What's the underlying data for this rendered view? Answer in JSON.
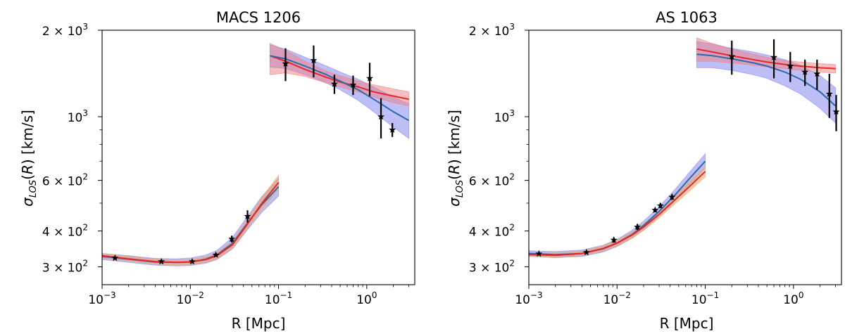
{
  "chart_data": [
    {
      "type": "line",
      "title": "MACS 1206",
      "xlabel": "R [Mpc]",
      "ylabel": "σ_LOS(R) [km/s]",
      "xscale": "log",
      "yscale": "log",
      "xlim": [
        0.001,
        3.5
      ],
      "ylim": [
        260,
        2000
      ],
      "x_ticks": [
        {
          "base": "10",
          "exp": "−3",
          "value": 0.001
        },
        {
          "base": "10",
          "exp": "−2",
          "value": 0.01
        },
        {
          "base": "10",
          "exp": "−1",
          "value": 0.1
        },
        {
          "base": "10",
          "exp": "0",
          "value": 1
        }
      ],
      "y_ticks": [
        {
          "mant": "3 × 10",
          "exp": "2",
          "value": 300
        },
        {
          "mant": "4 × 10",
          "exp": "2",
          "value": 400
        },
        {
          "mant": "6 × 10",
          "exp": "2",
          "value": 600
        },
        {
          "mant": "",
          "base": "10",
          "exp": "3",
          "value": 1000
        },
        {
          "mant": "2 × 10",
          "exp": "3",
          "value": 2000
        }
      ],
      "grid": false,
      "colors": {
        "red": "#e8232a",
        "blue": "#2a6aa8",
        "red_band": "#f08080",
        "orange_band": "#f4a460",
        "blue_band": "#8a8af0"
      },
      "series": [
        {
          "role": "inner-data",
          "x": [
            0.0014,
            0.0047,
            0.0105,
            0.0195,
            0.0295,
            0.0445
          ],
          "y": [
            322,
            313,
            313,
            330,
            375,
            450
          ],
          "yerr": [
            3,
            3,
            3,
            4,
            10,
            22
          ]
        },
        {
          "role": "outer-data",
          "x": [
            0.12,
            0.25,
            0.43,
            0.7,
            1.08,
            1.45,
            1.95
          ],
          "y": [
            1530,
            1570,
            1300,
            1290,
            1360,
            1000,
            900
          ],
          "yerr": [
            200,
            200,
            100,
            100,
            180,
            160,
            50
          ]
        },
        {
          "role": "inner-model-red",
          "x": [
            0.001,
            0.002,
            0.004,
            0.007,
            0.01,
            0.015,
            0.02,
            0.03,
            0.045,
            0.065,
            0.1
          ],
          "y": [
            328,
            320,
            313,
            311,
            312,
            318,
            328,
            358,
            425,
            500,
            590
          ],
          "band": [
            [
              322,
              334
            ],
            [
              314,
              326
            ],
            [
              307,
              319
            ],
            [
              305,
              317
            ],
            [
              306,
              318
            ],
            [
              311,
              325
            ],
            [
              320,
              336
            ],
            [
              348,
              368
            ],
            [
              410,
              442
            ],
            [
              478,
              522
            ],
            [
              558,
              625
            ]
          ]
        },
        {
          "role": "inner-model-blue",
          "x": [
            0.001,
            0.002,
            0.004,
            0.007,
            0.01,
            0.015,
            0.02,
            0.03,
            0.045,
            0.065,
            0.1
          ],
          "y": [
            326,
            319,
            312,
            311,
            312,
            319,
            330,
            362,
            428,
            495,
            570
          ],
          "band": [
            [
              318,
              334
            ],
            [
              311,
              328
            ],
            [
              304,
              321
            ],
            [
              302,
              320
            ],
            [
              303,
              322
            ],
            [
              309,
              330
            ],
            [
              318,
              342
            ],
            [
              346,
              380
            ],
            [
              406,
              452
            ],
            [
              465,
              528
            ],
            [
              530,
              612
            ]
          ]
        },
        {
          "role": "outer-model-red",
          "x": [
            0.08,
            0.12,
            0.2,
            0.35,
            0.5,
            0.8,
            1.2,
            2.0,
            3.0
          ],
          "y": [
            1630,
            1560,
            1460,
            1370,
            1320,
            1270,
            1220,
            1180,
            1150
          ],
          "band": [
            [
              1400,
              1800
            ],
            [
              1420,
              1700
            ],
            [
              1380,
              1560
            ],
            [
              1310,
              1440
            ],
            [
              1270,
              1390
            ],
            [
              1220,
              1330
            ],
            [
              1170,
              1290
            ],
            [
              1120,
              1250
            ],
            [
              1090,
              1220
            ]
          ]
        },
        {
          "role": "outer-model-blue",
          "x": [
            0.08,
            0.12,
            0.2,
            0.35,
            0.5,
            0.8,
            1.2,
            2.0,
            3.0
          ],
          "y": [
            1630,
            1590,
            1500,
            1400,
            1330,
            1240,
            1150,
            1040,
            970
          ],
          "band": [
            [
              1490,
              1780
            ],
            [
              1470,
              1720
            ],
            [
              1400,
              1610
            ],
            [
              1310,
              1500
            ],
            [
              1240,
              1430
            ],
            [
              1140,
              1350
            ],
            [
              1040,
              1270
            ],
            [
              920,
              1170
            ],
            [
              840,
              1110
            ]
          ]
        }
      ]
    },
    {
      "type": "line",
      "title": "AS 1063",
      "xlabel": "R [Mpc]",
      "ylabel": "σ_LOS(R) [km/s]",
      "xscale": "log",
      "yscale": "log",
      "xlim": [
        0.001,
        3.5
      ],
      "ylim": [
        260,
        2000
      ],
      "x_ticks": [
        {
          "base": "10",
          "exp": "−3",
          "value": 0.001
        },
        {
          "base": "10",
          "exp": "−2",
          "value": 0.01
        },
        {
          "base": "10",
          "exp": "−1",
          "value": 0.1
        },
        {
          "base": "10",
          "exp": "0",
          "value": 1
        }
      ],
      "y_ticks": [
        {
          "mant": "3 × 10",
          "exp": "2",
          "value": 300
        },
        {
          "mant": "4 × 10",
          "exp": "2",
          "value": 400
        },
        {
          "mant": "6 × 10",
          "exp": "2",
          "value": 600
        },
        {
          "mant": "",
          "base": "10",
          "exp": "3",
          "value": 1000
        },
        {
          "mant": "2 × 10",
          "exp": "3",
          "value": 2000
        }
      ],
      "grid": false,
      "colors": {
        "red": "#e8232a",
        "blue": "#2a6aa8",
        "red_band": "#f08080",
        "orange_band": "#f4a460",
        "blue_band": "#8a8af0"
      },
      "series": [
        {
          "role": "inner-data",
          "x": [
            0.0013,
            0.0045,
            0.0092,
            0.017,
            0.027,
            0.031,
            0.042
          ],
          "y": [
            333,
            337,
            372,
            413,
            473,
            490,
            525
          ],
          "yerr": [
            3,
            3,
            8,
            10,
            8,
            10,
            12
          ]
        },
        {
          "role": "outer-data",
          "x": [
            0.2,
            0.6,
            0.92,
            1.35,
            1.85,
            2.55,
            3.05
          ],
          "y": [
            1620,
            1610,
            1500,
            1430,
            1410,
            1200,
            1040
          ],
          "yerr": [
            220,
            250,
            180,
            150,
            170,
            210,
            150
          ]
        },
        {
          "role": "inner-model-red",
          "x": [
            0.001,
            0.002,
            0.004,
            0.007,
            0.01,
            0.015,
            0.02,
            0.03,
            0.045,
            0.065,
            0.1
          ],
          "y": [
            331,
            329,
            334,
            348,
            363,
            388,
            413,
            457,
            512,
            568,
            645
          ],
          "band": [
            [
              326,
              336
            ],
            [
              323,
              335
            ],
            [
              328,
              340
            ],
            [
              341,
              355
            ],
            [
              355,
              371
            ],
            [
              378,
              398
            ],
            [
              402,
              424
            ],
            [
              444,
              470
            ],
            [
              496,
              528
            ],
            [
              548,
              590
            ],
            [
              618,
              672
            ]
          ]
        },
        {
          "role": "inner-model-blue",
          "x": [
            0.001,
            0.002,
            0.004,
            0.007,
            0.01,
            0.015,
            0.02,
            0.03,
            0.045,
            0.065,
            0.1
          ],
          "y": [
            334,
            331,
            334,
            347,
            363,
            390,
            418,
            468,
            532,
            605,
            700
          ],
          "band": [
            [
              327,
              341
            ],
            [
              323,
              339
            ],
            [
              326,
              343
            ],
            [
              338,
              357
            ],
            [
              353,
              374
            ],
            [
              378,
              403
            ],
            [
              404,
              433
            ],
            [
              451,
              486
            ],
            [
              510,
              556
            ],
            [
              576,
              636
            ],
            [
              662,
              742
            ]
          ]
        },
        {
          "role": "outer-model-red",
          "x": [
            0.08,
            0.12,
            0.2,
            0.35,
            0.5,
            0.8,
            1.2,
            2.0,
            3.0
          ],
          "y": [
            1720,
            1680,
            1630,
            1580,
            1550,
            1520,
            1500,
            1480,
            1470
          ],
          "band": [
            [
              1560,
              1880
            ],
            [
              1560,
              1800
            ],
            [
              1540,
              1720
            ],
            [
              1510,
              1650
            ],
            [
              1490,
              1610
            ],
            [
              1470,
              1570
            ],
            [
              1450,
              1550
            ],
            [
              1430,
              1530
            ],
            [
              1420,
              1520
            ]
          ]
        },
        {
          "role": "outer-model-blue",
          "x": [
            0.08,
            0.12,
            0.2,
            0.35,
            0.5,
            0.8,
            1.2,
            2.0,
            3.0
          ],
          "y": [
            1650,
            1630,
            1590,
            1540,
            1500,
            1430,
            1350,
            1220,
            1090
          ],
          "band": [
            [
              1480,
              1830
            ],
            [
              1480,
              1790
            ],
            [
              1450,
              1730
            ],
            [
              1400,
              1680
            ],
            [
              1360,
              1640
            ],
            [
              1280,
              1580
            ],
            [
              1200,
              1510
            ],
            [
              1070,
              1390
            ],
            [
              950,
              1260
            ]
          ]
        }
      ]
    }
  ]
}
